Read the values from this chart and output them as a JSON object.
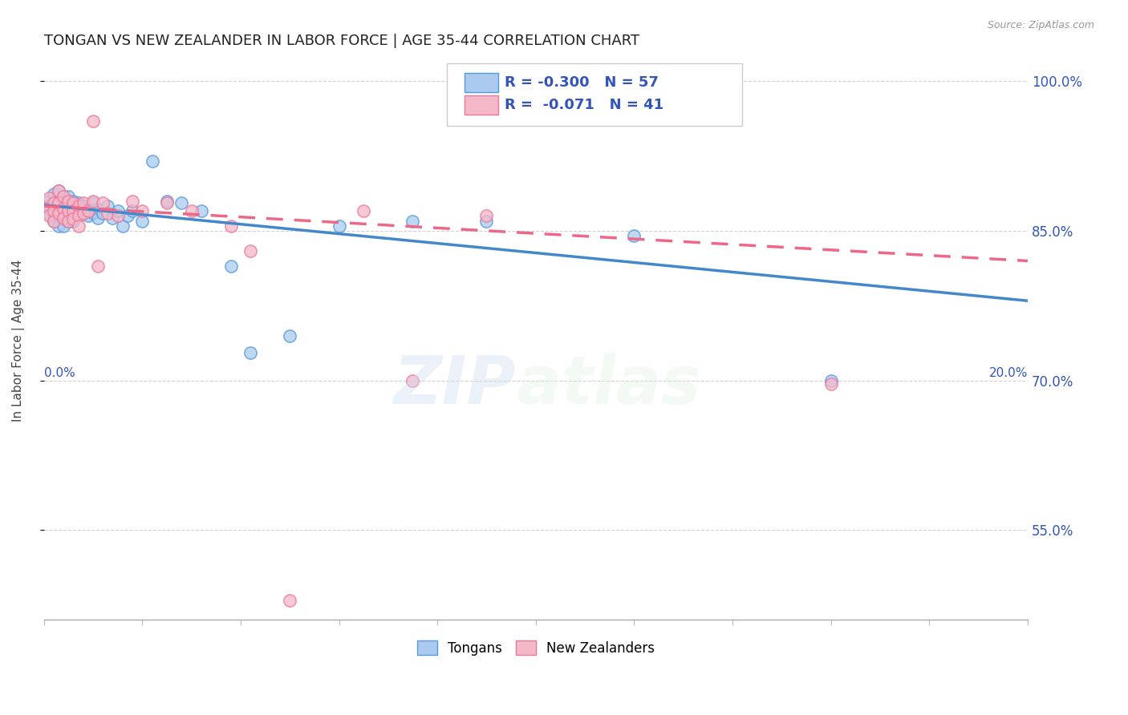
{
  "title": "TONGAN VS NEW ZEALANDER IN LABOR FORCE | AGE 35-44 CORRELATION CHART",
  "source": "Source: ZipAtlas.com",
  "ylabel": "In Labor Force | Age 35-44",
  "xlim": [
    0.0,
    0.2
  ],
  "ylim": [
    0.46,
    1.02
  ],
  "yticks_right": [
    0.55,
    0.7,
    0.85,
    1.0
  ],
  "ytick_labels_right": [
    "55.0%",
    "70.0%",
    "85.0%",
    "100.0%"
  ],
  "legend_r1": "-0.300",
  "legend_n1": "57",
  "legend_r2": "-0.071",
  "legend_n2": "41",
  "blue_color": "#AACBEE",
  "pink_color": "#F5B8C8",
  "blue_edge_color": "#5599DD",
  "pink_edge_color": "#EE7799",
  "blue_line_color": "#4488CC",
  "pink_line_color": "#EE6688",
  "legend_text_color": "#3355BB",
  "axis_color": "#3355BB",
  "title_color": "#222222",
  "source_color": "#999999",
  "background_color": "#FFFFFF",
  "grid_color": "#CCCCCC",
  "blue_x": [
    0.001,
    0.001,
    0.001,
    0.002,
    0.002,
    0.002,
    0.002,
    0.003,
    0.003,
    0.003,
    0.003,
    0.003,
    0.004,
    0.004,
    0.004,
    0.004,
    0.004,
    0.005,
    0.005,
    0.005,
    0.005,
    0.005,
    0.006,
    0.006,
    0.006,
    0.006,
    0.007,
    0.007,
    0.007,
    0.008,
    0.008,
    0.009,
    0.009,
    0.01,
    0.01,
    0.011,
    0.011,
    0.012,
    0.013,
    0.014,
    0.015,
    0.016,
    0.017,
    0.018,
    0.02,
    0.022,
    0.025,
    0.028,
    0.032,
    0.038,
    0.042,
    0.05,
    0.06,
    0.075,
    0.09,
    0.12,
    0.16
  ],
  "blue_y": [
    0.88,
    0.868,
    0.875,
    0.887,
    0.875,
    0.868,
    0.86,
    0.89,
    0.878,
    0.87,
    0.865,
    0.855,
    0.885,
    0.878,
    0.87,
    0.863,
    0.855,
    0.885,
    0.878,
    0.872,
    0.867,
    0.86,
    0.88,
    0.875,
    0.868,
    0.86,
    0.878,
    0.872,
    0.865,
    0.875,
    0.868,
    0.872,
    0.865,
    0.878,
    0.868,
    0.872,
    0.863,
    0.868,
    0.875,
    0.863,
    0.87,
    0.855,
    0.865,
    0.87,
    0.86,
    0.92,
    0.88,
    0.878,
    0.87,
    0.815,
    0.728,
    0.745,
    0.855,
    0.86,
    0.86,
    0.845,
    0.7
  ],
  "pink_x": [
    0.001,
    0.001,
    0.001,
    0.002,
    0.002,
    0.002,
    0.003,
    0.003,
    0.003,
    0.004,
    0.004,
    0.004,
    0.005,
    0.005,
    0.005,
    0.006,
    0.006,
    0.006,
    0.007,
    0.007,
    0.007,
    0.008,
    0.008,
    0.009,
    0.01,
    0.01,
    0.011,
    0.012,
    0.013,
    0.015,
    0.018,
    0.02,
    0.025,
    0.03,
    0.038,
    0.042,
    0.05,
    0.065,
    0.075,
    0.09,
    0.16
  ],
  "pink_y": [
    0.883,
    0.873,
    0.865,
    0.878,
    0.87,
    0.86,
    0.89,
    0.878,
    0.868,
    0.885,
    0.873,
    0.863,
    0.88,
    0.87,
    0.86,
    0.878,
    0.87,
    0.862,
    0.875,
    0.865,
    0.855,
    0.878,
    0.868,
    0.87,
    0.96,
    0.88,
    0.815,
    0.878,
    0.868,
    0.865,
    0.88,
    0.87,
    0.878,
    0.87,
    0.855,
    0.83,
    0.48,
    0.87,
    0.7,
    0.865,
    0.697
  ]
}
